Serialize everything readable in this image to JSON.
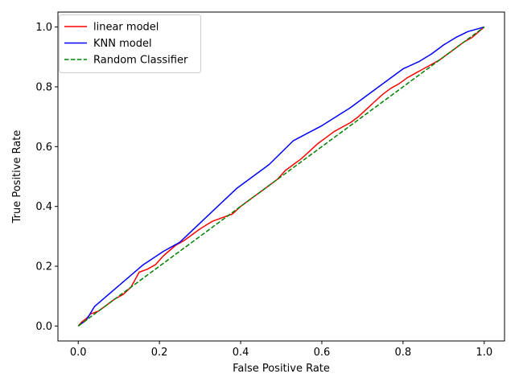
{
  "chart_data": {
    "type": "line",
    "title": "",
    "xlabel": "False Positive Rate",
    "ylabel": "True Positive Rate",
    "xlim": [
      -0.05,
      1.05
    ],
    "ylim": [
      -0.05,
      1.05
    ],
    "xticks": [
      0.0,
      0.2,
      0.4,
      0.6,
      0.8,
      1.0
    ],
    "yticks": [
      0.0,
      0.2,
      0.4,
      0.6,
      0.8,
      1.0
    ],
    "xtick_labels": [
      "0.0",
      "0.2",
      "0.4",
      "0.6",
      "0.8",
      "1.0"
    ],
    "ytick_labels": [
      "0.0",
      "0.2",
      "0.4",
      "0.6",
      "0.8",
      "1.0"
    ],
    "grid": false,
    "legend_position": "top-left",
    "series": [
      {
        "name": "linear model",
        "color": "#ff0000",
        "style": "solid",
        "x": [
          0.0,
          0.01,
          0.02,
          0.03,
          0.05,
          0.07,
          0.09,
          0.11,
          0.13,
          0.15,
          0.17,
          0.19,
          0.21,
          0.24,
          0.26,
          0.28,
          0.3,
          0.33,
          0.35,
          0.38,
          0.4,
          0.42,
          0.45,
          0.47,
          0.49,
          0.51,
          0.53,
          0.55,
          0.57,
          0.59,
          0.61,
          0.63,
          0.65,
          0.67,
          0.69,
          0.71,
          0.73,
          0.75,
          0.77,
          0.79,
          0.81,
          0.83,
          0.85,
          0.87,
          0.89,
          0.91,
          0.93,
          0.95,
          0.97,
          1.0
        ],
        "y": [
          0.0,
          0.015,
          0.025,
          0.04,
          0.05,
          0.07,
          0.09,
          0.105,
          0.13,
          0.18,
          0.19,
          0.205,
          0.235,
          0.27,
          0.285,
          0.305,
          0.325,
          0.35,
          0.36,
          0.375,
          0.4,
          0.42,
          0.45,
          0.47,
          0.49,
          0.52,
          0.54,
          0.56,
          0.585,
          0.61,
          0.63,
          0.65,
          0.665,
          0.68,
          0.7,
          0.725,
          0.75,
          0.775,
          0.795,
          0.81,
          0.83,
          0.845,
          0.86,
          0.875,
          0.89,
          0.91,
          0.93,
          0.95,
          0.965,
          1.0
        ]
      },
      {
        "name": "KNN model",
        "color": "#0000ff",
        "style": "solid",
        "x": [
          0.0,
          0.02,
          0.04,
          0.07,
          0.1,
          0.16,
          0.21,
          0.25,
          0.32,
          0.39,
          0.47,
          0.53,
          0.6,
          0.67,
          0.72,
          0.76,
          0.8,
          0.84,
          0.87,
          0.9,
          0.93,
          0.96,
          1.0
        ],
        "y": [
          0.0,
          0.02,
          0.065,
          0.1,
          0.135,
          0.205,
          0.25,
          0.28,
          0.37,
          0.46,
          0.54,
          0.62,
          0.67,
          0.73,
          0.78,
          0.82,
          0.86,
          0.885,
          0.91,
          0.94,
          0.965,
          0.985,
          1.0
        ]
      },
      {
        "name": "Random Classifier",
        "color": "#008000",
        "style": "dashed",
        "x": [
          0.0,
          1.0
        ],
        "y": [
          0.0,
          1.0
        ]
      }
    ]
  }
}
